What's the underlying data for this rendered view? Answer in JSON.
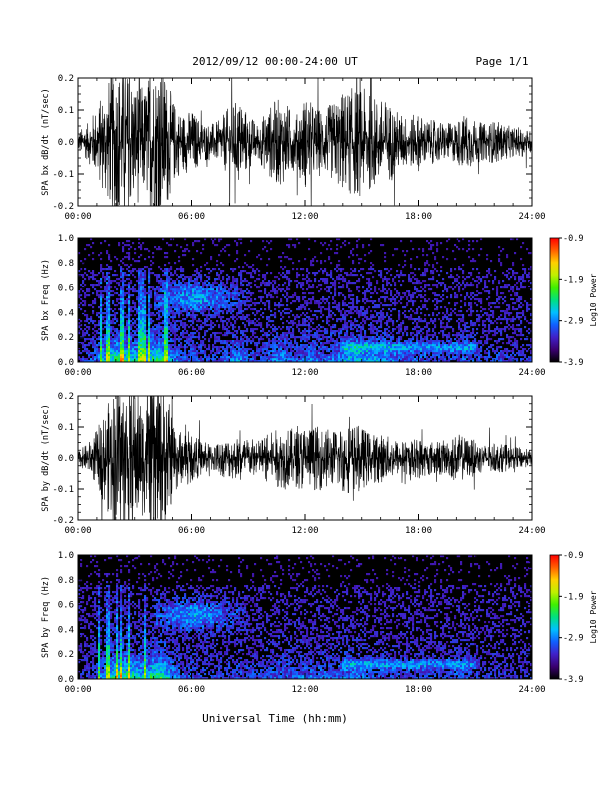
{
  "header": {
    "title": "2012/09/12  00:00-24:00 UT",
    "page_label": "Page 1/1"
  },
  "footer": {
    "xlabel": "Universal Time (hh:mm)"
  },
  "colorbar": {
    "label": "Log10 Power",
    "ticks": [
      "-0.9",
      "-1.9",
      "-2.9",
      "-3.9"
    ],
    "range": [
      -3.9,
      -0.9
    ],
    "colors": [
      "#000000",
      "#3a0070",
      "#4020c8",
      "#1060ff",
      "#00c0ff",
      "#00e080",
      "#40f000",
      "#c0f000",
      "#ffd000",
      "#ff6000",
      "#ff0000"
    ]
  },
  "chart_data": [
    {
      "type": "line",
      "ylabel": "SPA bx dB/dt (nT/sec)",
      "xlim": [
        "00:00",
        "24:00"
      ],
      "ylim": [
        -0.2,
        0.2
      ],
      "x_ticks": [
        "00:00",
        "06:00",
        "12:00",
        "18:00",
        "24:00"
      ],
      "y_ticks": [
        "-0.2",
        "-0.1",
        "0.0",
        "0.1",
        "0.2"
      ],
      "envelope": {
        "x_hours": [
          0,
          0.5,
          1,
          1.5,
          2,
          2.5,
          3,
          3.5,
          4,
          4.5,
          5,
          5.5,
          6,
          6.5,
          7,
          7.5,
          8,
          8.5,
          9,
          9.5,
          10,
          10.5,
          11,
          11.5,
          12,
          12.5,
          13,
          13.5,
          14,
          14.5,
          15,
          15.5,
          16,
          16.5,
          17,
          17.5,
          18,
          18.5,
          19,
          19.5,
          20,
          20.5,
          21,
          21.5,
          22,
          22.5,
          23,
          23.5,
          24
        ],
        "amplitude": [
          0.03,
          0.05,
          0.1,
          0.16,
          0.22,
          0.2,
          0.18,
          0.15,
          0.22,
          0.22,
          0.12,
          0.08,
          0.09,
          0.06,
          0.05,
          0.06,
          0.1,
          0.12,
          0.08,
          0.05,
          0.09,
          0.12,
          0.11,
          0.07,
          0.13,
          0.1,
          0.09,
          0.11,
          0.14,
          0.15,
          0.15,
          0.13,
          0.12,
          0.11,
          0.08,
          0.07,
          0.08,
          0.06,
          0.06,
          0.05,
          0.06,
          0.08,
          0.06,
          0.05,
          0.06,
          0.05,
          0.04,
          0.04,
          0.03
        ]
      }
    },
    {
      "type": "heatmap",
      "ylabel": "SPA bx Freq (Hz)",
      "xlim": [
        "00:00",
        "24:00"
      ],
      "ylim": [
        0,
        1.0
      ],
      "x_ticks": [
        "00:00",
        "06:00",
        "12:00",
        "18:00",
        "24:00"
      ],
      "y_ticks": [
        "0.0",
        "0.2",
        "0.4",
        "0.6",
        "0.8",
        "1.0"
      ],
      "clim": [
        -3.9,
        -0.9
      ]
    },
    {
      "type": "line",
      "ylabel": "SPA by dB/dt (nT/sec)",
      "xlim": [
        "00:00",
        "24:00"
      ],
      "ylim": [
        -0.2,
        0.2
      ],
      "x_ticks": [
        "00:00",
        "06:00",
        "12:00",
        "18:00",
        "24:00"
      ],
      "y_ticks": [
        "-0.2",
        "-0.1",
        "0.0",
        "0.1",
        "0.2"
      ],
      "envelope": {
        "x_hours": [
          0,
          0.5,
          1,
          1.5,
          2,
          2.5,
          3,
          3.5,
          4,
          4.5,
          5,
          5.5,
          6,
          6.5,
          7,
          7.5,
          8,
          8.5,
          9,
          9.5,
          10,
          10.5,
          11,
          11.5,
          12,
          12.5,
          13,
          13.5,
          14,
          14.5,
          15,
          15.5,
          16,
          16.5,
          17,
          17.5,
          18,
          18.5,
          19,
          19.5,
          20,
          20.5,
          21,
          21.5,
          22,
          22.5,
          23,
          23.5,
          24
        ],
        "amplitude": [
          0.02,
          0.04,
          0.08,
          0.14,
          0.22,
          0.22,
          0.2,
          0.16,
          0.22,
          0.22,
          0.12,
          0.07,
          0.07,
          0.05,
          0.04,
          0.05,
          0.06,
          0.06,
          0.06,
          0.05,
          0.07,
          0.08,
          0.09,
          0.08,
          0.1,
          0.09,
          0.09,
          0.08,
          0.1,
          0.1,
          0.09,
          0.07,
          0.07,
          0.06,
          0.05,
          0.05,
          0.06,
          0.05,
          0.05,
          0.05,
          0.07,
          0.06,
          0.05,
          0.04,
          0.04,
          0.04,
          0.03,
          0.03,
          0.02
        ]
      }
    },
    {
      "type": "heatmap",
      "ylabel": "SPA by Freq (Hz)",
      "xlim": [
        "00:00",
        "24:00"
      ],
      "ylim": [
        0,
        1.0
      ],
      "x_ticks": [
        "00:00",
        "06:00",
        "12:00",
        "18:00",
        "24:00"
      ],
      "y_ticks": [
        "0.0",
        "0.2",
        "0.4",
        "0.6",
        "0.8",
        "1.0"
      ],
      "clim": [
        -3.9,
        -0.9
      ]
    }
  ]
}
